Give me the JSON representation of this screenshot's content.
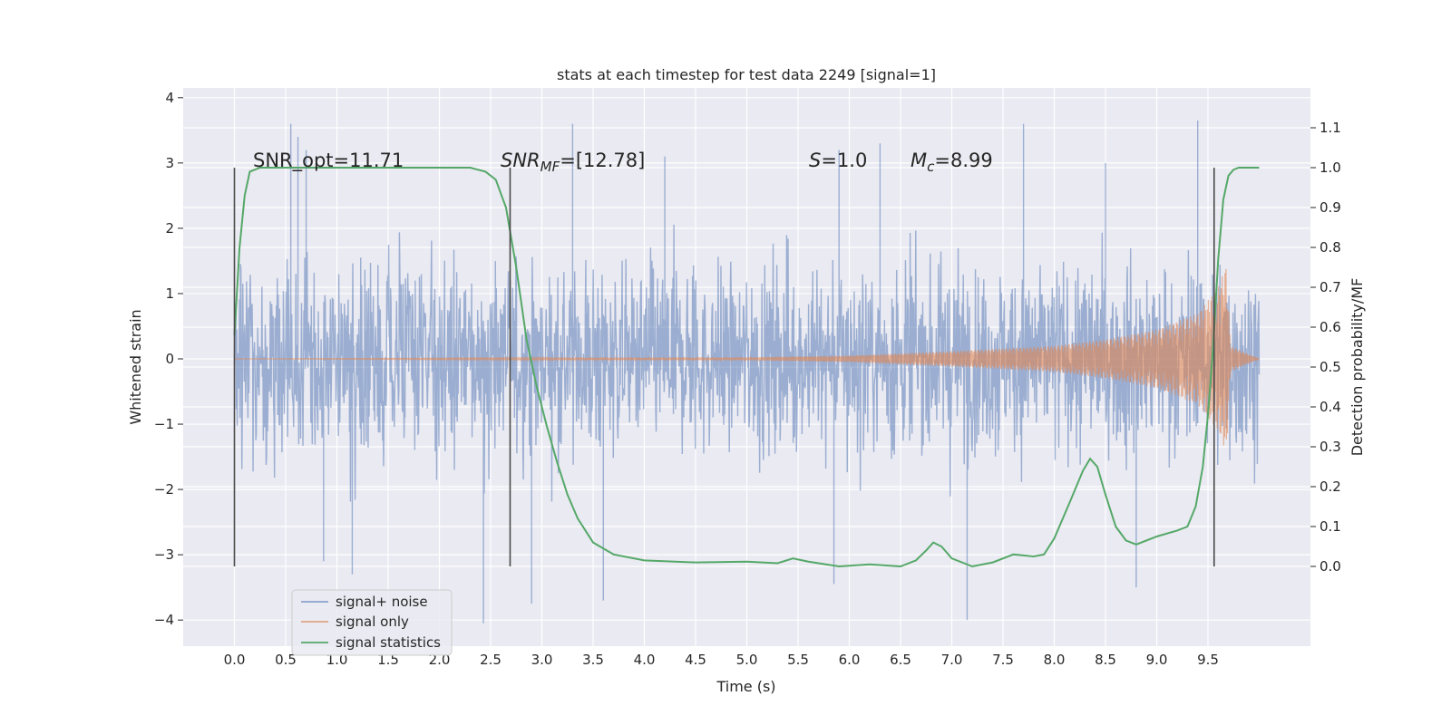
{
  "chart_data": {
    "type": "line",
    "title": "stats at each timestep for test data 2249 [signal=1]",
    "xlabel": "Time (s)",
    "ylabel": "Whitened strain",
    "ylabel_right": "Detection probability/MF",
    "xlim": [
      -0.5,
      10.5
    ],
    "ylim": [
      -4.4,
      4.15
    ],
    "ylim_right": [
      -0.2,
      1.2
    ],
    "x_ticks": [
      "0.0",
      "0.5",
      "1.0",
      "1.5",
      "2.0",
      "2.5",
      "3.0",
      "3.5",
      "4.0",
      "4.5",
      "5.0",
      "5.5",
      "6.0",
      "6.5",
      "7.0",
      "7.5",
      "8.0",
      "8.5",
      "9.0",
      "9.5"
    ],
    "y_ticks": [
      "4",
      "3",
      "2",
      "1",
      "0",
      "−1",
      "−2",
      "−3",
      "−4"
    ],
    "y_ticks_right": [
      "1.1",
      "1.0",
      "0.9",
      "0.8",
      "0.7",
      "0.6",
      "0.5",
      "0.4",
      "0.3",
      "0.2",
      "0.1",
      "0.0"
    ],
    "grid": true,
    "legend_position": "lower-left",
    "annotations": {
      "snr_opt": "SNR_opt=11.71",
      "snr_mf_base": "SNR",
      "snr_mf_sub": "MF",
      "snr_mf_value": "=[12.78]",
      "s_label": "S",
      "s_value": "=1.0",
      "mc_base": "M",
      "mc_sub": "c",
      "mc_value": "=8.99"
    },
    "vertical_markers": [
      0.0,
      2.69,
      9.56
    ],
    "series": [
      {
        "name": "signal+ noise",
        "color": "#4c72b0",
        "x_range": [
          0.0,
          10.0
        ],
        "envelope_typical": 2.2,
        "envelope_max": 4.0,
        "peaks": [
          [
            0.55,
            3.6
          ],
          [
            0.62,
            3.4
          ],
          [
            0.7,
            3.2
          ],
          [
            0.87,
            -3.1
          ],
          [
            1.15,
            -3.3
          ],
          [
            2.43,
            -4.05
          ],
          [
            2.9,
            -3.75
          ],
          [
            3.3,
            3.6
          ],
          [
            3.6,
            -3.7
          ],
          [
            5.85,
            -3.45
          ],
          [
            7.15,
            -4.0
          ],
          [
            7.7,
            3.6
          ],
          [
            8.8,
            -3.5
          ],
          [
            9.4,
            3.65
          ],
          [
            8.5,
            3.0
          ],
          [
            6.3,
            3.3
          ],
          [
            5.9,
            3.2
          ],
          [
            4.2,
            3.1
          ]
        ]
      },
      {
        "name": "signal only",
        "color": "#dd8452",
        "x_range": [
          0.0,
          10.0
        ],
        "amplitude_points": [
          [
            0.0,
            0.0
          ],
          [
            5.0,
            0.02
          ],
          [
            6.0,
            0.05
          ],
          [
            7.0,
            0.12
          ],
          [
            8.0,
            0.2
          ],
          [
            8.5,
            0.3
          ],
          [
            9.0,
            0.45
          ],
          [
            9.4,
            0.7
          ],
          [
            9.6,
            1.1
          ],
          [
            9.68,
            1.45
          ],
          [
            9.72,
            0.2
          ],
          [
            10.0,
            0.0
          ]
        ]
      },
      {
        "name": "signal statistics",
        "color": "#55a868",
        "axis": "right",
        "x": [
          0.0,
          0.05,
          0.1,
          0.15,
          0.25,
          0.4,
          0.6,
          1.0,
          1.5,
          2.0,
          2.3,
          2.45,
          2.55,
          2.65,
          2.75,
          2.85,
          2.95,
          3.05,
          3.15,
          3.25,
          3.35,
          3.5,
          3.7,
          4.0,
          4.5,
          5.0,
          5.3,
          5.45,
          5.6,
          5.9,
          6.2,
          6.5,
          6.65,
          6.75,
          6.82,
          6.9,
          7.0,
          7.2,
          7.4,
          7.6,
          7.8,
          7.9,
          8.0,
          8.15,
          8.28,
          8.35,
          8.42,
          8.5,
          8.6,
          8.7,
          8.8,
          9.0,
          9.2,
          9.3,
          9.38,
          9.45,
          9.5,
          9.55,
          9.6,
          9.65,
          9.7,
          9.75,
          9.8,
          9.9,
          10.0
        ],
        "y": [
          0.58,
          0.8,
          0.93,
          0.99,
          1.0,
          1.0,
          1.0,
          1.0,
          1.0,
          1.0,
          1.0,
          0.99,
          0.97,
          0.9,
          0.75,
          0.57,
          0.45,
          0.35,
          0.26,
          0.18,
          0.12,
          0.06,
          0.03,
          0.015,
          0.01,
          0.012,
          0.008,
          0.02,
          0.012,
          0.0,
          0.005,
          0.0,
          0.015,
          0.04,
          0.06,
          0.05,
          0.02,
          0.0,
          0.01,
          0.03,
          0.025,
          0.03,
          0.07,
          0.16,
          0.24,
          0.27,
          0.25,
          0.18,
          0.1,
          0.065,
          0.055,
          0.075,
          0.09,
          0.1,
          0.15,
          0.25,
          0.38,
          0.55,
          0.77,
          0.92,
          0.98,
          0.995,
          1.0,
          1.0,
          1.0
        ]
      }
    ]
  }
}
